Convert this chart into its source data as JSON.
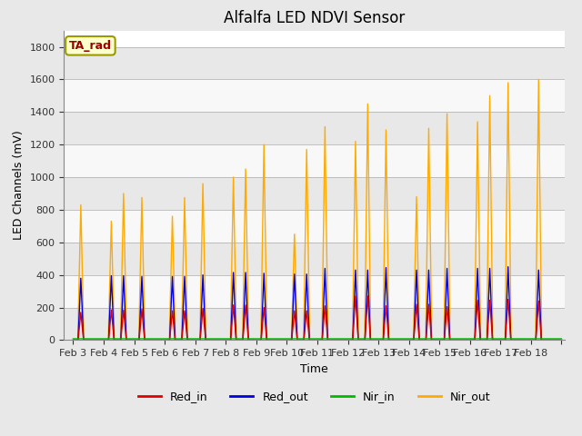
{
  "title": "Alfalfa LED NDVI Sensor",
  "xlabel": "Time",
  "ylabel": "LED Channels (mV)",
  "legend_label": "TA_rad",
  "series_labels": [
    "Red_in",
    "Red_out",
    "Nir_in",
    "Nir_out"
  ],
  "series_colors": [
    "#dd0000",
    "#0000dd",
    "#00bb00",
    "#ffaa00"
  ],
  "ylim": [
    0,
    1900
  ],
  "yticks": [
    0,
    200,
    400,
    600,
    800,
    1000,
    1200,
    1400,
    1600,
    1800
  ],
  "background_color": "#e8e8e8",
  "axes_background": "#ffffff",
  "title_fontsize": 12,
  "axis_fontsize": 9,
  "tick_fontsize": 8,
  "days": [
    "Feb 3",
    "Feb 4",
    "Feb 5",
    "Feb 6",
    "Feb 7",
    "Feb 8",
    "Feb 9",
    "Feb 10",
    "Feb 11",
    "Feb 12",
    "Feb 13",
    "Feb 14",
    "Feb 15",
    "Feb 16",
    "Feb 17",
    "Feb 18"
  ],
  "nir_out_peaks1": [
    830,
    730,
    875,
    760,
    960,
    1000,
    1200,
    650,
    1310,
    1220,
    1290,
    880,
    1390,
    1340,
    1580,
    1600
  ],
  "nir_out_peaks2": [
    0,
    900,
    0,
    875,
    0,
    1050,
    0,
    1170,
    0,
    1450,
    0,
    1300,
    0,
    1500,
    0,
    0
  ],
  "red_out_peaks": [
    380,
    395,
    390,
    390,
    400,
    415,
    410,
    405,
    440,
    430,
    445,
    430,
    440,
    440,
    450,
    430
  ],
  "red_in_peaks": [
    170,
    185,
    190,
    180,
    195,
    215,
    200,
    180,
    210,
    270,
    210,
    220,
    205,
    245,
    250,
    240
  ],
  "nir_in_value": 8
}
